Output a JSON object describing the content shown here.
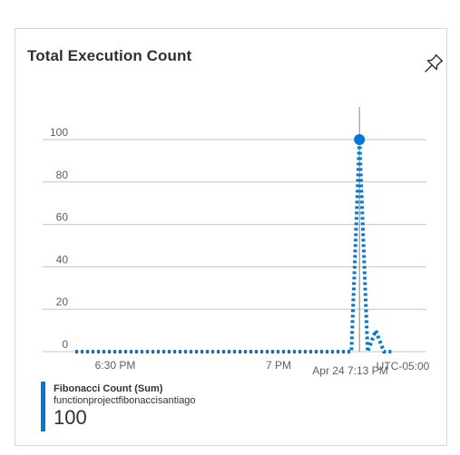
{
  "card": {
    "title": "Total Execution Count",
    "pin_icon": "pin-icon"
  },
  "chart_data": {
    "type": "line",
    "title": "Total Execution Count",
    "ylim": [
      0,
      100
    ],
    "y_ticks": [
      "0",
      "20",
      "40",
      "60",
      "80",
      "100"
    ],
    "y_tick_values": [
      0,
      20,
      40,
      60,
      80,
      100
    ],
    "x_tick_labels": [
      "6:30 PM",
      "7 PM",
      "Apr 24 7:13 PM",
      "UTC-05:00"
    ],
    "cursor_label": "Apr 24 7:13 PM",
    "timezone": "UTC-05:00",
    "line_style": "dotted",
    "series": [
      {
        "name": "Fibonacci Count (Sum)",
        "resource": "functionproject fibonaccisantiago",
        "color": "#0078d4",
        "values": [
          0,
          0,
          0,
          0,
          0,
          0,
          0,
          0,
          0,
          0,
          0,
          0,
          0,
          0,
          0,
          0,
          0,
          0,
          0,
          0,
          0,
          0,
          0,
          0,
          0,
          0,
          0,
          0,
          0,
          0,
          0,
          0,
          0,
          0,
          0,
          100,
          0,
          10,
          0,
          0
        ]
      }
    ],
    "highlighted_point": {
      "index": 35,
      "value": 100
    }
  },
  "legend": {
    "series_name": "Fibonacci Count (Sum)",
    "resource": "functionprojectfibonaccisantiago",
    "value": "100",
    "color": "#0078d4"
  }
}
